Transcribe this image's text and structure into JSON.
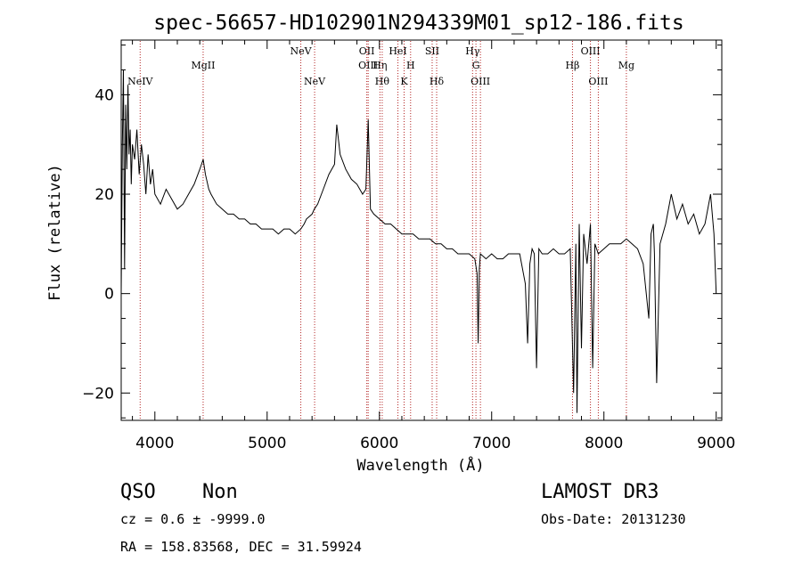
{
  "chart_data": {
    "type": "line",
    "title": "spec-56657-HD102901N294339M01_sp12-186.fits",
    "xlabel": "Wavelength (Å)",
    "ylabel": "Flux (relative)",
    "xlim": [
      3700,
      9050
    ],
    "ylim": [
      -25.5,
      51
    ],
    "xticks": [
      4000,
      5000,
      6000,
      7000,
      8000,
      9000
    ],
    "yticks": [
      -20,
      0,
      20,
      40
    ],
    "grid": false,
    "series": [
      {
        "x": [
          3700,
          3710,
          3720,
          3730,
          3740,
          3750,
          3760,
          3770,
          3780,
          3790,
          3800,
          3820,
          3840,
          3860,
          3880,
          3900,
          3920,
          3940,
          3960,
          3980,
          4000,
          4050,
          4100,
          4150,
          4200,
          4250,
          4300,
          4350,
          4400,
          4430,
          4450,
          4480,
          4500,
          4550,
          4600,
          4650,
          4700,
          4750,
          4800,
          4850,
          4900,
          4950,
          5000,
          5050,
          5100,
          5150,
          5200,
          5250,
          5300,
          5330,
          5350,
          5400,
          5420,
          5450,
          5500,
          5550,
          5600,
          5620,
          5650,
          5700,
          5750,
          5800,
          5850,
          5880,
          5900,
          5920,
          5950,
          6000,
          6050,
          6100,
          6150,
          6200,
          6250,
          6300,
          6350,
          6400,
          6450,
          6500,
          6550,
          6600,
          6650,
          6700,
          6750,
          6800,
          6850,
          6870,
          6880,
          6890,
          6900,
          6950,
          7000,
          7050,
          7100,
          7150,
          7200,
          7250,
          7300,
          7320,
          7340,
          7360,
          7380,
          7400,
          7420,
          7450,
          7500,
          7550,
          7600,
          7650,
          7700,
          7730,
          7750,
          7760,
          7780,
          7800,
          7820,
          7850,
          7880,
          7900,
          7920,
          7950,
          8000,
          8050,
          8100,
          8150,
          8200,
          8250,
          8300,
          8350,
          8400,
          8420,
          8440,
          8450,
          8470,
          8500,
          8550,
          8600,
          8650,
          8700,
          8750,
          8800,
          8850,
          8900,
          8950,
          8980,
          9000
        ],
        "y": [
          0,
          30,
          45,
          5,
          38,
          25,
          42,
          28,
          33,
          22,
          30,
          27,
          33,
          24,
          30,
          26,
          20,
          28,
          22,
          25,
          20,
          18,
          21,
          19,
          17,
          18,
          20,
          22,
          25,
          27,
          24,
          21,
          20,
          18,
          17,
          16,
          16,
          15,
          15,
          14,
          14,
          13,
          13,
          13,
          12,
          13,
          13,
          12,
          13,
          14,
          15,
          16,
          17,
          18,
          21,
          24,
          26,
          34,
          28,
          25,
          23,
          22,
          20,
          21,
          35,
          17,
          16,
          15,
          14,
          14,
          13,
          12,
          12,
          12,
          11,
          11,
          11,
          10,
          10,
          9,
          9,
          8,
          8,
          8,
          7,
          4,
          -10,
          5,
          8,
          7,
          8,
          7,
          7,
          8,
          8,
          8,
          2,
          -10,
          6,
          9,
          8,
          -15,
          9,
          8,
          8,
          9,
          8,
          8,
          9,
          -20,
          10,
          -24,
          14,
          -11,
          12,
          6,
          14,
          -15,
          10,
          8,
          9,
          10,
          10,
          10,
          11,
          10,
          9,
          6,
          -5,
          12,
          14,
          8,
          -18,
          10,
          14,
          20,
          15,
          18,
          14,
          16,
          12,
          14,
          20,
          12,
          0
        ],
        "color": "#000000"
      }
    ],
    "lines": [
      {
        "name": "NeIV",
        "x": 3869,
        "row": 3
      },
      {
        "name": "MgII",
        "x": 4430,
        "row": 1
      },
      {
        "name": "NeV",
        "x": 5300,
        "row": 0
      },
      {
        "name": "NeV",
        "x": 5423,
        "row": 3
      },
      {
        "name": "OII",
        "x": 5888,
        "row": 0
      },
      {
        "name": "OIII",
        "x": 5900,
        "row": 1
      },
      {
        "name": "Hη",
        "x": 6005,
        "row": 1
      },
      {
        "name": "Hθ",
        "x": 6025,
        "row": 3
      },
      {
        "name": "HeI",
        "x": 6165,
        "row": 0
      },
      {
        "name": "K",
        "x": 6220,
        "row": 3
      },
      {
        "name": "H",
        "x": 6278,
        "row": 1
      },
      {
        "name": "SII",
        "x": 6470,
        "row": 0
      },
      {
        "name": "Hδ",
        "x": 6510,
        "row": 3
      },
      {
        "name": "Hγ",
        "x": 6830,
        "row": 0
      },
      {
        "name": "G",
        "x": 6860,
        "row": 1
      },
      {
        "name": "OIII",
        "x": 6900,
        "row": 3
      },
      {
        "name": "Hβ",
        "x": 7720,
        "row": 1
      },
      {
        "name": "OIII",
        "x": 7880,
        "row": 0
      },
      {
        "name": "OIII",
        "x": 7950,
        "row": 3
      },
      {
        "name": "Mg",
        "x": 8200,
        "row": 1
      }
    ]
  },
  "info": {
    "class_label": "QSO",
    "subclass_label": "Non",
    "cz_text": "cz = 0.6 ± -9999.0",
    "coords_text": "RA = 158.83568, DEC =  31.59924",
    "survey_label": "LAMOST DR3",
    "obs_date_text": "Obs-Date: 20131230"
  }
}
